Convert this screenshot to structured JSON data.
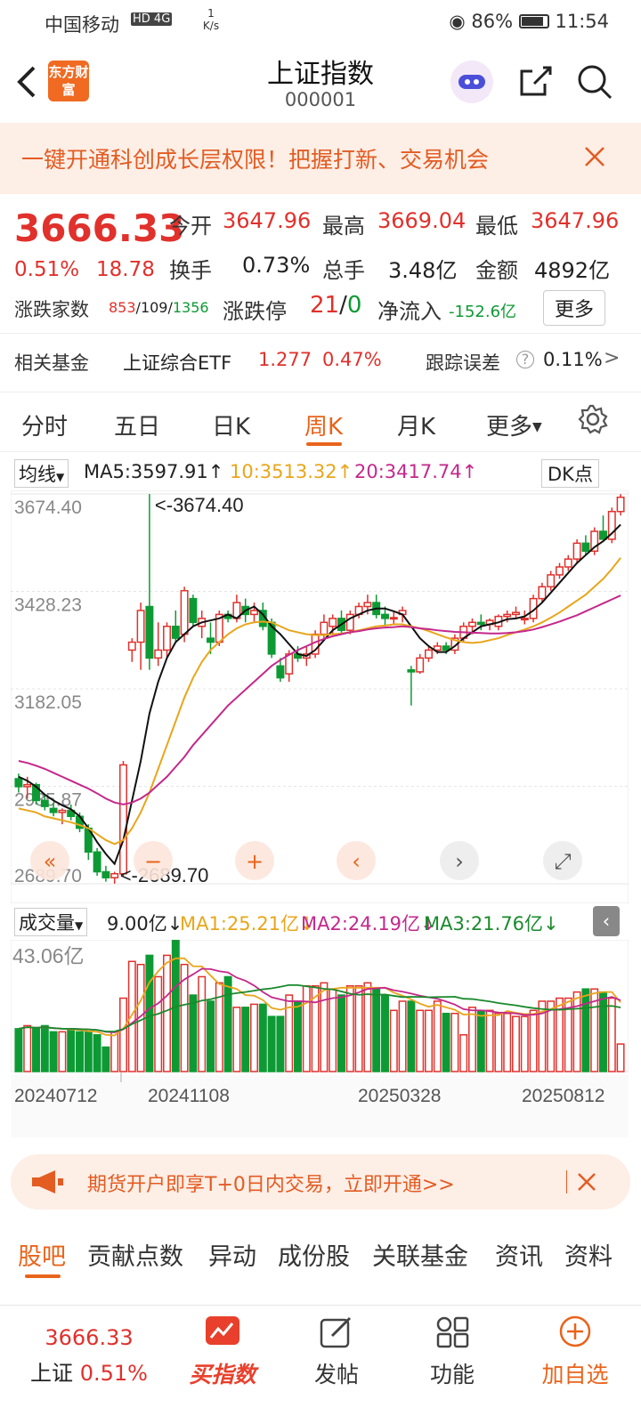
{
  "status": {
    "carrier": "中国移动",
    "network": "HD 4G",
    "speed": "1 K/s",
    "battery": "86%",
    "time": "11:54"
  },
  "header": {
    "logo": "东方财富",
    "title": "上证指数",
    "code": "000001"
  },
  "banner": {
    "text": "一键开通科创成长层权限！把握打新、交易机会"
  },
  "quote": {
    "price": "3666.33",
    "pct": "0.51%",
    "change": "18.78",
    "open_label": "今开",
    "open": "3647.96",
    "high_label": "最高",
    "high": "3669.04",
    "low_label": "最低",
    "low": "3647.96",
    "turnover_label": "换手",
    "turnover": "0.73%",
    "vol_label": "总手",
    "vol": "3.48亿",
    "amount_label": "金额",
    "amount": "4892亿",
    "breadth_label": "涨跌家数",
    "breadth_up": "853",
    "breadth_flat": "109",
    "breadth_down": "1356",
    "limit_label": "涨跌停",
    "limit_up": "21",
    "limit_down": "0",
    "flow_label": "净流入",
    "flow": "-152.6亿",
    "more": "更多",
    "fund_label": "相关基金",
    "fund_name": "上证综合ETF",
    "fund_price": "1.277",
    "fund_pct": "0.47%",
    "track_label": "跟踪误差",
    "track_value": "0.11%"
  },
  "tabs": [
    "分时",
    "五日",
    "日K",
    "周K",
    "月K",
    "更多"
  ],
  "ma": {
    "selector": "均线",
    "ma5": "MA5:3597.91",
    "ma10": "10:3513.32",
    "ma20": "20:3417.74",
    "dk": "DK点"
  },
  "chart_data": {
    "type": "candlestick",
    "period": "weekly",
    "y_ticks": [
      "3674.40",
      "3428.23",
      "3182.05",
      "2935.87",
      "2689.70"
    ],
    "annotations": {
      "high": "<-3674.40",
      "low": "<-2689.70"
    },
    "ylim": [
      2689.7,
      3674.4
    ],
    "candles": [
      [
        2955,
        2968,
        2920,
        2935
      ],
      [
        2935,
        2960,
        2905,
        2940
      ],
      [
        2940,
        2945,
        2890,
        2900
      ],
      [
        2900,
        2915,
        2875,
        2885
      ],
      [
        2880,
        2895,
        2860,
        2870
      ],
      [
        2870,
        2880,
        2840,
        2875
      ],
      [
        2875,
        2890,
        2850,
        2860
      ],
      [
        2860,
        2870,
        2820,
        2830
      ],
      [
        2830,
        2840,
        2750,
        2770
      ],
      [
        2770,
        2780,
        2710,
        2720
      ],
      [
        2720,
        2735,
        2695,
        2705
      ],
      [
        2705,
        2720,
        2690,
        2715
      ],
      [
        2715,
        3000,
        2710,
        2990
      ],
      [
        3280,
        3310,
        3250,
        3300
      ],
      [
        3300,
        3400,
        3230,
        3380
      ],
      [
        3390,
        3674,
        3230,
        3260
      ],
      [
        3260,
        3350,
        3240,
        3280
      ],
      [
        3280,
        3350,
        3260,
        3340
      ],
      [
        3340,
        3380,
        3300,
        3310
      ],
      [
        3320,
        3440,
        3300,
        3430
      ],
      [
        3410,
        3420,
        3340,
        3350
      ],
      [
        3340,
        3380,
        3310,
        3360
      ],
      [
        3310,
        3350,
        3270,
        3300
      ],
      [
        3300,
        3380,
        3290,
        3370
      ],
      [
        3370,
        3380,
        3350,
        3360
      ],
      [
        3360,
        3420,
        3350,
        3400
      ],
      [
        3390,
        3410,
        3350,
        3370
      ],
      [
        3370,
        3400,
        3350,
        3380
      ],
      [
        3380,
        3400,
        3330,
        3340
      ],
      [
        3350,
        3360,
        3260,
        3270
      ],
      [
        3240,
        3260,
        3200,
        3210
      ],
      [
        3220,
        3280,
        3200,
        3270
      ],
      [
        3270,
        3290,
        3250,
        3260
      ],
      [
        3260,
        3290,
        3240,
        3270
      ],
      [
        3270,
        3330,
        3260,
        3320
      ],
      [
        3320,
        3370,
        3310,
        3350
      ],
      [
        3340,
        3370,
        3320,
        3360
      ],
      [
        3360,
        3380,
        3320,
        3330
      ],
      [
        3330,
        3380,
        3320,
        3370
      ],
      [
        3370,
        3400,
        3360,
        3390
      ],
      [
        3390,
        3420,
        3370,
        3400
      ],
      [
        3400,
        3420,
        3360,
        3370
      ],
      [
        3370,
        3390,
        3340,
        3360
      ],
      [
        3360,
        3380,
        3345,
        3362
      ],
      [
        3370,
        3390,
        3350,
        3380
      ],
      [
        3230,
        3240,
        3140,
        3225
      ],
      [
        3225,
        3270,
        3220,
        3260
      ],
      [
        3260,
        3290,
        3250,
        3280
      ],
      [
        3280,
        3300,
        3270,
        3290
      ],
      [
        3290,
        3300,
        3270,
        3280
      ],
      [
        3280,
        3320,
        3270,
        3310
      ],
      [
        3310,
        3350,
        3300,
        3340
      ],
      [
        3340,
        3360,
        3320,
        3350
      ],
      [
        3350,
        3370,
        3330,
        3345
      ],
      [
        3345,
        3360,
        3330,
        3355
      ],
      [
        3340,
        3370,
        3330,
        3365
      ],
      [
        3365,
        3380,
        3350,
        3370
      ],
      [
        3370,
        3390,
        3360,
        3375
      ],
      [
        3360,
        3380,
        3345,
        3360
      ],
      [
        3360,
        3420,
        3350,
        3410
      ],
      [
        3410,
        3450,
        3400,
        3440
      ],
      [
        3440,
        3480,
        3430,
        3470
      ],
      [
        3470,
        3500,
        3460,
        3490
      ],
      [
        3490,
        3520,
        3480,
        3510
      ],
      [
        3510,
        3560,
        3500,
        3550
      ],
      [
        3550,
        3570,
        3520,
        3530
      ],
      [
        3530,
        3590,
        3520,
        3580
      ],
      [
        3580,
        3620,
        3560,
        3560
      ],
      [
        3560,
        3640,
        3550,
        3630
      ],
      [
        3630,
        3674,
        3620,
        3666
      ]
    ],
    "ma5": [
      2960,
      2950,
      2935,
      2915,
      2900,
      2888,
      2878,
      2860,
      2830,
      2795,
      2765,
      2740,
      2800,
      2900,
      3000,
      3120,
      3200,
      3260,
      3300,
      3320,
      3340,
      3350,
      3355,
      3360,
      3370,
      3360,
      3380,
      3390,
      3370,
      3340,
      3320,
      3295,
      3270,
      3265,
      3280,
      3305,
      3330,
      3345,
      3360,
      3370,
      3380,
      3385,
      3385,
      3378,
      3370,
      3340,
      3310,
      3290,
      3275,
      3275,
      3290,
      3310,
      3325,
      3340,
      3345,
      3350,
      3358,
      3360,
      3365,
      3380,
      3400,
      3425,
      3450,
      3475,
      3500,
      3520,
      3540,
      3555,
      3575,
      3597
    ],
    "ma10": [
      2880,
      2875,
      2870,
      2860,
      2855,
      2850,
      2845,
      2838,
      2830,
      2815,
      2800,
      2790,
      2800,
      2830,
      2870,
      2920,
      2980,
      3040,
      3100,
      3160,
      3210,
      3250,
      3280,
      3300,
      3320,
      3335,
      3345,
      3350,
      3352,
      3350,
      3340,
      3330,
      3325,
      3320,
      3318,
      3318,
      3320,
      3322,
      3325,
      3330,
      3335,
      3340,
      3342,
      3345,
      3345,
      3340,
      3335,
      3328,
      3320,
      3312,
      3305,
      3300,
      3298,
      3300,
      3305,
      3310,
      3318,
      3325,
      3332,
      3340,
      3350,
      3362,
      3375,
      3390,
      3405,
      3420,
      3440,
      3460,
      3485,
      3513
    ],
    "ma20": [
      3000,
      2995,
      2988,
      2980,
      2970,
      2960,
      2950,
      2940,
      2930,
      2918,
      2905,
      2895,
      2890,
      2895,
      2905,
      2920,
      2940,
      2960,
      2985,
      3010,
      3040,
      3065,
      3090,
      3115,
      3140,
      3160,
      3180,
      3200,
      3220,
      3240,
      3255,
      3268,
      3280,
      3290,
      3300,
      3308,
      3315,
      3320,
      3325,
      3328,
      3332,
      3335,
      3337,
      3338,
      3340,
      3338,
      3335,
      3333,
      3330,
      3328,
      3326,
      3325,
      3324,
      3323,
      3322,
      3322,
      3323,
      3325,
      3328,
      3332,
      3338,
      3345,
      3352,
      3360,
      3368,
      3378,
      3388,
      3398,
      3408,
      3418
    ]
  },
  "chart_controls": [
    "left-double",
    "minus",
    "plus",
    "left",
    "right",
    "fullscreen"
  ],
  "vol": {
    "selector": "成交量",
    "current": "9.00亿",
    "ma1": "MA1:25.21亿",
    "ma2": "MA2:24.19亿",
    "ma3": "MA3:21.76亿",
    "max_label": "43.06亿",
    "dates": [
      "20240712",
      "20241108",
      "20250328",
      "20250812"
    ],
    "values": [
      14,
      15,
      14,
      15,
      13,
      13,
      14,
      13,
      13,
      12,
      8,
      13,
      24,
      36,
      35,
      38,
      31,
      38,
      43,
      35,
      25,
      31,
      23,
      29,
      31,
      21,
      21,
      22,
      22,
      18,
      18,
      25,
      23,
      28,
      28,
      29,
      27,
      25,
      28,
      28,
      29,
      27,
      25,
      20,
      23,
      23,
      20,
      20,
      23,
      19,
      19,
      12,
      21,
      20,
      20,
      19,
      19,
      18,
      18,
      20,
      23,
      23,
      24,
      24,
      26,
      27,
      27,
      26,
      24,
      9
    ]
  },
  "ad": {
    "text": "期货开户即享T+0日内交易，立即开通>>"
  },
  "subtabs": [
    "股吧",
    "贡献点数",
    "异动",
    "成份股",
    "关联基金",
    "资讯",
    "资料"
  ],
  "bottom": {
    "name": "上证",
    "price": "3666.33",
    "pct": "0.51%",
    "buy": "买指数",
    "post": "发帖",
    "func": "功能",
    "add": "加自选"
  }
}
